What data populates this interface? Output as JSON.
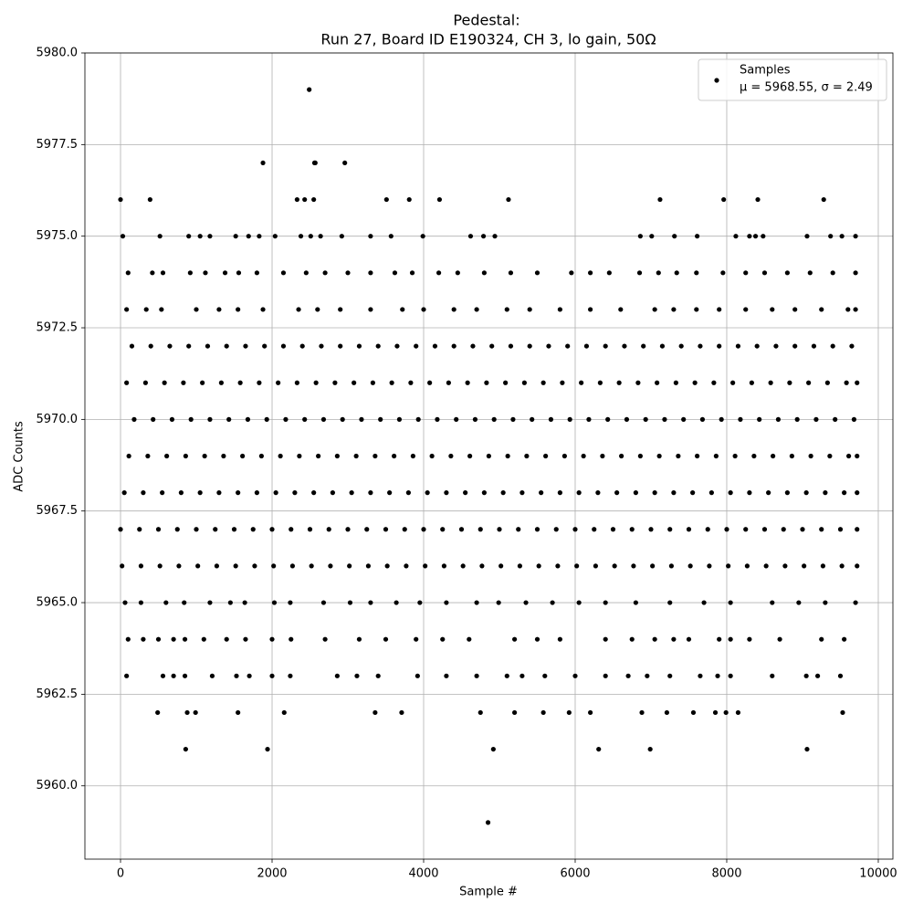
{
  "chart_data": {
    "type": "scatter",
    "title": "Pedestal:",
    "subtitle": "Run 27, Board ID E190324, CH 3, lo gain, 50Ω",
    "x_label": "Sample #",
    "y_label": "ADC Counts",
    "xlim": [
      -470,
      10193
    ],
    "ylim": [
      5958,
      5980
    ],
    "xticks": [
      0,
      2000,
      4000,
      6000,
      8000,
      10000
    ],
    "yticks": [
      {
        "value": 5960,
        "label": "5960.0"
      },
      {
        "value": 5962.5,
        "label": "5962.5"
      },
      {
        "value": 5965,
        "label": "5965.0"
      },
      {
        "value": 5967.5,
        "label": "5967.5"
      },
      {
        "value": 5970,
        "label": "5970.0"
      },
      {
        "value": 5972.5,
        "label": "5972.5"
      },
      {
        "value": 5975,
        "label": "5975.0"
      },
      {
        "value": 5977.5,
        "label": "5977.5"
      },
      {
        "value": 5980,
        "label": "5980.0"
      }
    ],
    "grid": true,
    "legend": "upper right",
    "annotation": "μ = 5968.55, σ = 2.49",
    "x": [
      4850,
      860,
      1940,
      4920,
      6310,
      6990,
      9060,
      490,
      880,
      990,
      1550,
      2160,
      3360,
      3710,
      4750,
      5200,
      5580,
      5920,
      6200,
      6880,
      7210,
      7560,
      7850,
      7990,
      8150,
      9530,
      80,
      560,
      700,
      850,
      1210,
      1530,
      1700,
      2000,
      2240,
      2860,
      3120,
      3400,
      3920,
      4300,
      4700,
      5100,
      5300,
      5600,
      6000,
      6400,
      6700,
      6950,
      7250,
      7650,
      7880,
      8050,
      8600,
      9050,
      9200,
      9500,
      100,
      300,
      500,
      700,
      850,
      1100,
      1400,
      1650,
      2000,
      2250,
      2700,
      3150,
      3500,
      3900,
      4250,
      4600,
      5200,
      5500,
      5800,
      6400,
      6750,
      7050,
      7300,
      7500,
      7900,
      8050,
      8300,
      8700,
      9250,
      9550,
      60,
      270,
      600,
      840,
      1180,
      1450,
      1640,
      2030,
      2240,
      2680,
      3030,
      3300,
      3640,
      3950,
      4300,
      4700,
      4990,
      5350,
      5700,
      6050,
      6400,
      6800,
      7250,
      7700,
      8050,
      8600,
      8950,
      9300,
      9700,
      20,
      270,
      520,
      770,
      1020,
      1270,
      1520,
      1770,
      2020,
      2270,
      2520,
      2770,
      3020,
      3270,
      3520,
      3770,
      4020,
      4270,
      4520,
      4770,
      5020,
      5270,
      5520,
      5770,
      6020,
      6270,
      6520,
      6770,
      7020,
      7270,
      7520,
      7770,
      8020,
      8270,
      8520,
      8770,
      9020,
      9270,
      9520,
      9720,
      0,
      250,
      500,
      750,
      1000,
      1250,
      1500,
      1750,
      2000,
      2250,
      2500,
      2750,
      3000,
      3250,
      3500,
      3750,
      4000,
      4250,
      4500,
      4750,
      5000,
      5250,
      5500,
      5750,
      6000,
      6250,
      6500,
      6750,
      7000,
      7250,
      7500,
      7750,
      8000,
      8250,
      8500,
      8750,
      9000,
      9250,
      9500,
      9720,
      50,
      300,
      550,
      800,
      1050,
      1300,
      1550,
      1800,
      2050,
      2300,
      2550,
      2800,
      3050,
      3300,
      3550,
      3800,
      4050,
      4300,
      4550,
      4800,
      5050,
      5300,
      5550,
      5800,
      6050,
      6300,
      6550,
      6800,
      7050,
      7300,
      7550,
      7800,
      8050,
      8300,
      8550,
      8800,
      9050,
      9300,
      9550,
      9720,
      110,
      360,
      610,
      860,
      1110,
      1360,
      1610,
      1860,
      2110,
      2360,
      2610,
      2860,
      3110,
      3360,
      3610,
      3860,
      4110,
      4360,
      4610,
      4860,
      5110,
      5360,
      5610,
      5860,
      6110,
      6360,
      6610,
      6860,
      7110,
      7360,
      7610,
      7860,
      8110,
      8360,
      8610,
      8860,
      9110,
      9360,
      9610,
      9720,
      180,
      430,
      680,
      930,
      1180,
      1430,
      1680,
      1930,
      2180,
      2430,
      2680,
      2930,
      3180,
      3430,
      3680,
      3930,
      4180,
      4430,
      4680,
      4930,
      5180,
      5430,
      5680,
      5930,
      6180,
      6430,
      6680,
      6930,
      7180,
      7430,
      7680,
      7930,
      8180,
      8430,
      8680,
      8930,
      9180,
      9430,
      9680,
      80,
      330,
      580,
      830,
      1080,
      1330,
      1580,
      1830,
      2080,
      2330,
      2580,
      2830,
      3080,
      3330,
      3580,
      3830,
      4080,
      4330,
      4580,
      4830,
      5080,
      5330,
      5580,
      5830,
      6080,
      6330,
      6580,
      6830,
      7080,
      7330,
      7580,
      7830,
      8080,
      8330,
      8580,
      8830,
      9080,
      9330,
      9580,
      9720,
      150,
      400,
      650,
      900,
      1150,
      1400,
      1650,
      1900,
      2150,
      2400,
      2650,
      2900,
      3150,
      3400,
      3650,
      3900,
      4150,
      4400,
      4650,
      4900,
      5150,
      5400,
      5650,
      5900,
      6150,
      6400,
      6650,
      6900,
      7150,
      7400,
      7650,
      7900,
      8150,
      8400,
      8650,
      8900,
      9150,
      9400,
      9650,
      80,
      340,
      540,
      1000,
      1300,
      1550,
      1880,
      2350,
      2600,
      2900,
      3300,
      3720,
      4000,
      4400,
      4700,
      5100,
      5400,
      5800,
      6200,
      6600,
      7050,
      7300,
      7600,
      7900,
      8250,
      8600,
      8900,
      9250,
      9600,
      9700,
      100,
      420,
      560,
      920,
      1120,
      1380,
      1560,
      1800,
      2150,
      2450,
      2700,
      3000,
      3300,
      3620,
      3850,
      4200,
      4450,
      4800,
      5150,
      5500,
      5950,
      6200,
      6450,
      6850,
      7100,
      7340,
      7600,
      7950,
      8250,
      8500,
      8800,
      9100,
      9400,
      9700,
      30,
      520,
      900,
      1050,
      1180,
      1520,
      1690,
      1830,
      2040,
      2380,
      2510,
      2640,
      2920,
      3300,
      3570,
      3990,
      4620,
      4790,
      4940,
      6860,
      7010,
      7310,
      7610,
      8120,
      8300,
      8380,
      8480,
      9060,
      9370,
      9520,
      9700,
      0,
      390,
      2330,
      2430,
      2550,
      3510,
      3810,
      4210,
      5120,
      7120,
      7960,
      8410,
      9280,
      1880,
      2560,
      2570,
      2960,
      2490
    ],
    "series": [
      {
        "name": "Samples",
        "color": "#000000",
        "values": [
          5959,
          5961,
          5961,
          5961,
          5961,
          5961,
          5961,
          5962,
          5962,
          5962,
          5962,
          5962,
          5962,
          5962,
          5962,
          5962,
          5962,
          5962,
          5962,
          5962,
          5962,
          5962,
          5962,
          5962,
          5962,
          5962,
          5963,
          5963,
          5963,
          5963,
          5963,
          5963,
          5963,
          5963,
          5963,
          5963,
          5963,
          5963,
          5963,
          5963,
          5963,
          5963,
          5963,
          5963,
          5963,
          5963,
          5963,
          5963,
          5963,
          5963,
          5963,
          5963,
          5963,
          5963,
          5963,
          5963,
          5964,
          5964,
          5964,
          5964,
          5964,
          5964,
          5964,
          5964,
          5964,
          5964,
          5964,
          5964,
          5964,
          5964,
          5964,
          5964,
          5964,
          5964,
          5964,
          5964,
          5964,
          5964,
          5964,
          5964,
          5964,
          5964,
          5964,
          5964,
          5964,
          5964,
          5965,
          5965,
          5965,
          5965,
          5965,
          5965,
          5965,
          5965,
          5965,
          5965,
          5965,
          5965,
          5965,
          5965,
          5965,
          5965,
          5965,
          5965,
          5965,
          5965,
          5965,
          5965,
          5965,
          5965,
          5965,
          5965,
          5965,
          5965,
          5965,
          5966,
          5966,
          5966,
          5966,
          5966,
          5966,
          5966,
          5966,
          5966,
          5966,
          5966,
          5966,
          5966,
          5966,
          5966,
          5966,
          5966,
          5966,
          5966,
          5966,
          5966,
          5966,
          5966,
          5966,
          5966,
          5966,
          5966,
          5966,
          5966,
          5966,
          5966,
          5966,
          5966,
          5966,
          5966,
          5966,
          5966,
          5966,
          5966,
          5966,
          5967,
          5967,
          5967,
          5967,
          5967,
          5967,
          5967,
          5967,
          5967,
          5967,
          5967,
          5967,
          5967,
          5967,
          5967,
          5967,
          5967,
          5967,
          5967,
          5967,
          5967,
          5967,
          5967,
          5967,
          5967,
          5967,
          5967,
          5967,
          5967,
          5967,
          5967,
          5967,
          5967,
          5967,
          5967,
          5967,
          5967,
          5967,
          5967,
          5967,
          5968,
          5968,
          5968,
          5968,
          5968,
          5968,
          5968,
          5968,
          5968,
          5968,
          5968,
          5968,
          5968,
          5968,
          5968,
          5968,
          5968,
          5968,
          5968,
          5968,
          5968,
          5968,
          5968,
          5968,
          5968,
          5968,
          5968,
          5968,
          5968,
          5968,
          5968,
          5968,
          5968,
          5968,
          5968,
          5968,
          5968,
          5968,
          5968,
          5968,
          5969,
          5969,
          5969,
          5969,
          5969,
          5969,
          5969,
          5969,
          5969,
          5969,
          5969,
          5969,
          5969,
          5969,
          5969,
          5969,
          5969,
          5969,
          5969,
          5969,
          5969,
          5969,
          5969,
          5969,
          5969,
          5969,
          5969,
          5969,
          5969,
          5969,
          5969,
          5969,
          5969,
          5969,
          5969,
          5969,
          5969,
          5969,
          5969,
          5969,
          5970,
          5970,
          5970,
          5970,
          5970,
          5970,
          5970,
          5970,
          5970,
          5970,
          5970,
          5970,
          5970,
          5970,
          5970,
          5970,
          5970,
          5970,
          5970,
          5970,
          5970,
          5970,
          5970,
          5970,
          5970,
          5970,
          5970,
          5970,
          5970,
          5970,
          5970,
          5970,
          5970,
          5970,
          5970,
          5970,
          5970,
          5970,
          5970,
          5971,
          5971,
          5971,
          5971,
          5971,
          5971,
          5971,
          5971,
          5971,
          5971,
          5971,
          5971,
          5971,
          5971,
          5971,
          5971,
          5971,
          5971,
          5971,
          5971,
          5971,
          5971,
          5971,
          5971,
          5971,
          5971,
          5971,
          5971,
          5971,
          5971,
          5971,
          5971,
          5971,
          5971,
          5971,
          5971,
          5971,
          5971,
          5971,
          5971,
          5972,
          5972,
          5972,
          5972,
          5972,
          5972,
          5972,
          5972,
          5972,
          5972,
          5972,
          5972,
          5972,
          5972,
          5972,
          5972,
          5972,
          5972,
          5972,
          5972,
          5972,
          5972,
          5972,
          5972,
          5972,
          5972,
          5972,
          5972,
          5972,
          5972,
          5972,
          5972,
          5972,
          5972,
          5972,
          5972,
          5972,
          5972,
          5972,
          5973,
          5973,
          5973,
          5973,
          5973,
          5973,
          5973,
          5973,
          5973,
          5973,
          5973,
          5973,
          5973,
          5973,
          5973,
          5973,
          5973,
          5973,
          5973,
          5973,
          5973,
          5973,
          5973,
          5973,
          5973,
          5973,
          5973,
          5973,
          5973,
          5973,
          5974,
          5974,
          5974,
          5974,
          5974,
          5974,
          5974,
          5974,
          5974,
          5974,
          5974,
          5974,
          5974,
          5974,
          5974,
          5974,
          5974,
          5974,
          5974,
          5974,
          5974,
          5974,
          5974,
          5974,
          5974,
          5974,
          5974,
          5974,
          5974,
          5974,
          5974,
          5974,
          5974,
          5974,
          5975,
          5975,
          5975,
          5975,
          5975,
          5975,
          5975,
          5975,
          5975,
          5975,
          5975,
          5975,
          5975,
          5975,
          5975,
          5975,
          5975,
          5975,
          5975,
          5975,
          5975,
          5975,
          5975,
          5975,
          5975,
          5975,
          5975,
          5975,
          5975,
          5975,
          5975,
          5976,
          5976,
          5976,
          5976,
          5976,
          5976,
          5976,
          5976,
          5976,
          5976,
          5976,
          5976,
          5976,
          5977,
          5977,
          5977,
          5977,
          5979
        ]
      }
    ]
  }
}
